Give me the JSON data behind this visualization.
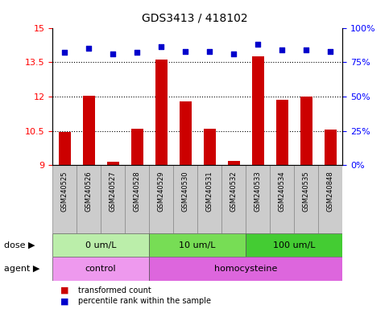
{
  "title": "GDS3413 / 418102",
  "samples": [
    "GSM240525",
    "GSM240526",
    "GSM240527",
    "GSM240528",
    "GSM240529",
    "GSM240530",
    "GSM240531",
    "GSM240532",
    "GSM240533",
    "GSM240534",
    "GSM240535",
    "GSM240848"
  ],
  "transformed_count": [
    10.45,
    12.05,
    9.15,
    10.6,
    13.6,
    11.8,
    10.6,
    9.2,
    13.75,
    11.85,
    12.0,
    10.55
  ],
  "percentile_rank": [
    82,
    85,
    81,
    82,
    86,
    83,
    83,
    81,
    88,
    84,
    84,
    83
  ],
  "ylim_left": [
    9,
    15
  ],
  "ylim_right": [
    0,
    100
  ],
  "yticks_left": [
    9,
    10.5,
    12,
    13.5,
    15
  ],
  "yticks_right": [
    0,
    25,
    50,
    75,
    100
  ],
  "ytick_labels_right": [
    "0%",
    "25%",
    "50%",
    "75%",
    "100%"
  ],
  "bar_color": "#cc0000",
  "dot_color": "#0000cc",
  "hline_vals": [
    10.5,
    12,
    13.5
  ],
  "dose_groups": [
    {
      "label": "0 um/L",
      "start": 0,
      "end": 4,
      "color": "#bbeeaa"
    },
    {
      "label": "10 um/L",
      "start": 4,
      "end": 8,
      "color": "#77dd55"
    },
    {
      "label": "100 um/L",
      "start": 8,
      "end": 12,
      "color": "#44cc33"
    }
  ],
  "agent_groups": [
    {
      "label": "control",
      "start": 0,
      "end": 4,
      "color": "#ee99ee"
    },
    {
      "label": "homocysteine",
      "start": 4,
      "end": 12,
      "color": "#dd66dd"
    }
  ],
  "dose_label": "dose",
  "agent_label": "agent",
  "legend_items": [
    {
      "color": "#cc0000",
      "label": "transformed count"
    },
    {
      "color": "#0000cc",
      "label": "percentile rank within the sample"
    }
  ],
  "sample_box_color": "#cccccc",
  "sample_box_edge": "#888888",
  "title_fontsize": 10,
  "tick_fontsize": 8,
  "label_fontsize": 8,
  "sample_fontsize": 6
}
